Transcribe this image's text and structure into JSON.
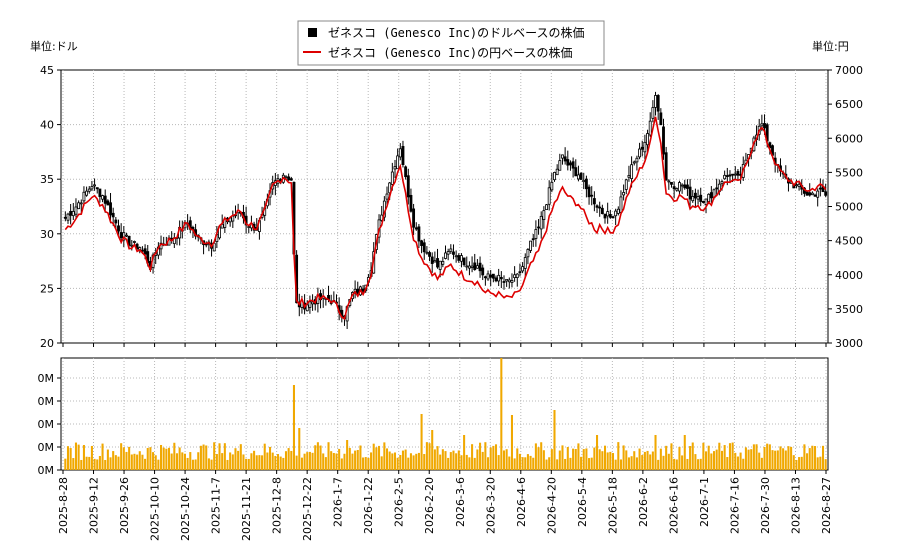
{
  "chart_data": {
    "type": "candlestick+line+volume",
    "legend": [
      {
        "name": "ゼネスコ (Genesco Inc)のドルベースの株価",
        "color": "#000000"
      },
      {
        "name": "ゼネスコ (Genesco Inc)の円ベースの株価",
        "color": "#dd0000"
      }
    ],
    "left_unit": "単位:ドル",
    "right_unit": "単位:円",
    "y_left": {
      "min": 20,
      "max": 45,
      "ticks": [
        20,
        25,
        30,
        35,
        40,
        45
      ]
    },
    "y_right": {
      "min": 3000,
      "max": 7000,
      "ticks": [
        3000,
        3500,
        4000,
        4500,
        5000,
        5500,
        6000,
        6500,
        7000
      ]
    },
    "volume_ticks": [
      "0M",
      "0M",
      "0M",
      "0M",
      "0M"
    ],
    "x_ticks": [
      "2025-8-28",
      "2025-9-12",
      "2025-9-26",
      "2025-10-10",
      "2025-10-24",
      "2025-11-7",
      "2025-11-21",
      "2025-12-8",
      "2025-12-22",
      "2026-1-7",
      "2026-1-22",
      "2026-2-5",
      "2026-2-20",
      "2026-3-6",
      "2026-3-20",
      "2026-4-6",
      "2026-4-20",
      "2026-5-4",
      "2026-5-18",
      "2026-6-2",
      "2026-6-16",
      "2026-7-1",
      "2026-7-16",
      "2026-7-30",
      "2026-8-13",
      "2026-8-27"
    ],
    "price_usd_keypoints": [
      [
        0,
        31.5
      ],
      [
        4,
        32.5
      ],
      [
        7,
        33.5
      ],
      [
        10,
        34.5
      ],
      [
        14,
        33.5
      ],
      [
        18,
        31.5
      ],
      [
        21,
        30.0
      ],
      [
        25,
        29.0
      ],
      [
        28,
        28.8
      ],
      [
        30,
        28.0
      ],
      [
        32,
        27.0
      ],
      [
        35,
        29.0
      ],
      [
        40,
        29.5
      ],
      [
        44,
        30.5
      ],
      [
        46,
        31.0
      ],
      [
        50,
        29.5
      ],
      [
        55,
        29.0
      ],
      [
        58,
        30.5
      ],
      [
        62,
        31.5
      ],
      [
        66,
        32.0
      ],
      [
        68,
        31.0
      ],
      [
        72,
        30.5
      ],
      [
        75,
        32.0
      ],
      [
        78,
        34.5
      ],
      [
        82,
        35.5
      ],
      [
        85,
        35.0
      ],
      [
        86,
        28.0
      ],
      [
        87,
        23.5
      ],
      [
        90,
        23.5
      ],
      [
        95,
        24.0
      ],
      [
        100,
        24.0
      ],
      [
        103,
        23.0
      ],
      [
        105,
        22.5
      ],
      [
        108,
        24.5
      ],
      [
        112,
        25.0
      ],
      [
        115,
        27.0
      ],
      [
        118,
        31.0
      ],
      [
        121,
        34.0
      ],
      [
        124,
        36.5
      ],
      [
        126,
        38.0
      ],
      [
        128,
        35.0
      ],
      [
        131,
        31.0
      ],
      [
        134,
        29.0
      ],
      [
        137,
        28.0
      ],
      [
        140,
        27.0
      ],
      [
        145,
        28.5
      ],
      [
        150,
        27.5
      ],
      [
        155,
        27.0
      ],
      [
        158,
        26.0
      ],
      [
        162,
        26.0
      ],
      [
        166,
        25.5
      ],
      [
        170,
        26.0
      ],
      [
        172,
        27.0
      ],
      [
        175,
        29.0
      ],
      [
        178,
        30.5
      ],
      [
        181,
        33.0
      ],
      [
        184,
        35.5
      ],
      [
        187,
        37.0
      ],
      [
        190,
        36.0
      ],
      [
        193,
        35.5
      ],
      [
        196,
        34.0
      ],
      [
        199,
        33.0
      ],
      [
        202,
        32.0
      ],
      [
        205,
        31.5
      ],
      [
        208,
        32.5
      ],
      [
        212,
        35.5
      ],
      [
        215,
        37.0
      ],
      [
        218,
        38.5
      ],
      [
        220,
        40.0
      ],
      [
        222,
        43.0
      ],
      [
        224,
        40.0
      ],
      [
        226,
        35.0
      ],
      [
        229,
        34.5
      ],
      [
        232,
        34.5
      ],
      [
        235,
        33.5
      ],
      [
        238,
        33.5
      ],
      [
        241,
        33.0
      ],
      [
        244,
        34.0
      ],
      [
        247,
        35.0
      ],
      [
        250,
        35.5
      ],
      [
        253,
        35.0
      ],
      [
        256,
        36.5
      ],
      [
        259,
        39.0
      ],
      [
        262,
        40.0
      ],
      [
        265,
        38.0
      ],
      [
        268,
        36.0
      ],
      [
        271,
        35.0
      ],
      [
        274,
        34.5
      ],
      [
        277,
        34.0
      ],
      [
        280,
        33.5
      ],
      [
        283,
        34.0
      ],
      [
        286,
        33.5
      ]
    ]
  }
}
